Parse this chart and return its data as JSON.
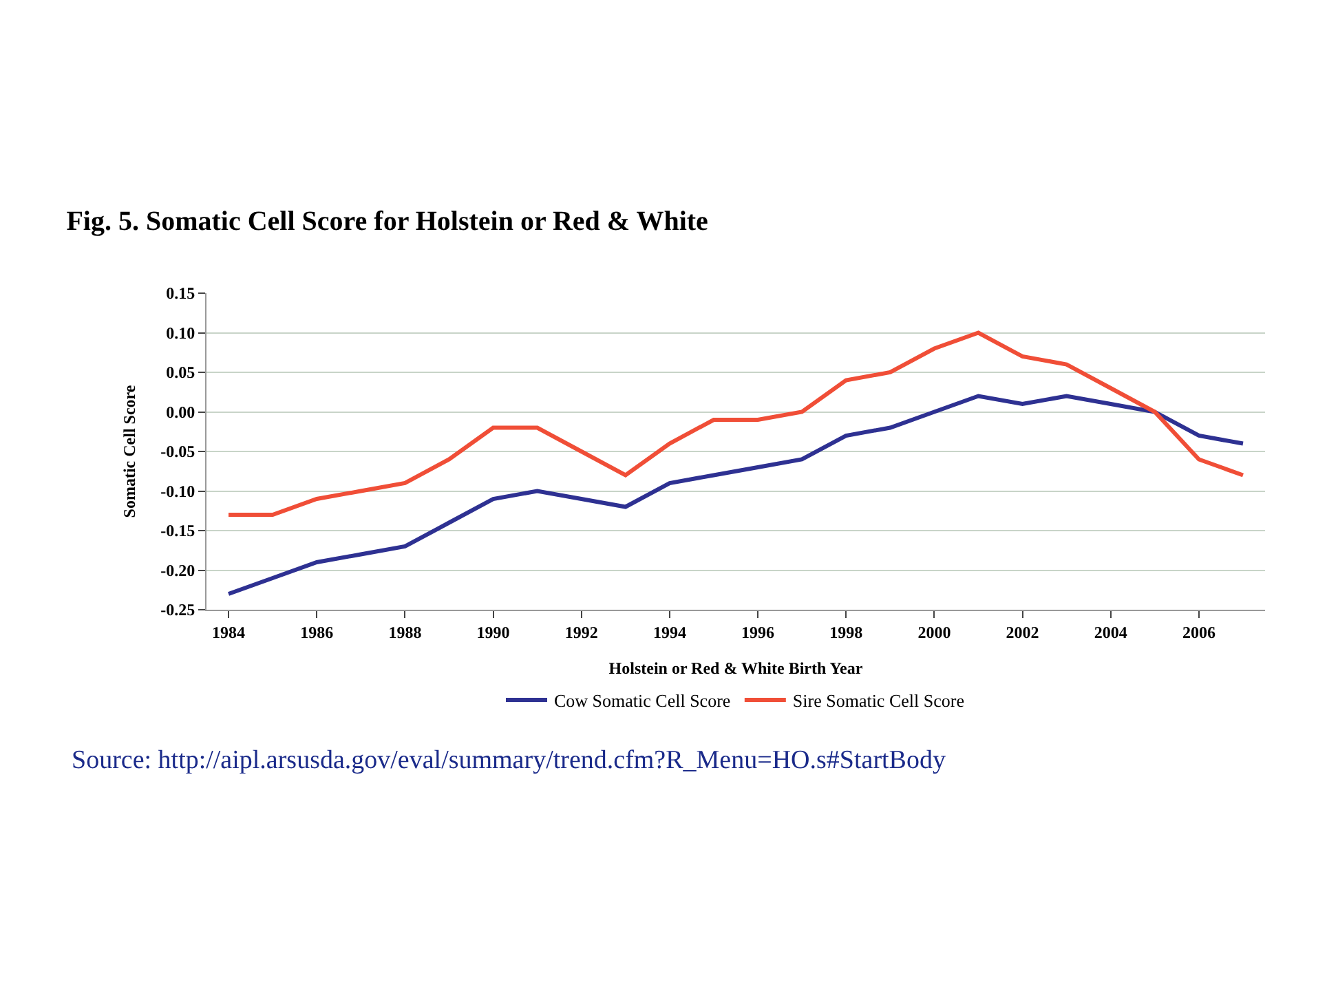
{
  "chart_data": {
    "type": "line",
    "title": "Fig. 5. Somatic Cell Score for Holstein or Red & White",
    "xlabel": "Holstein or Red & White Birth Year",
    "ylabel": "Somatic Cell Score",
    "x": [
      1984,
      1985,
      1986,
      1987,
      1988,
      1989,
      1990,
      1991,
      1992,
      1993,
      1994,
      1995,
      1996,
      1997,
      1998,
      1999,
      2000,
      2001,
      2002,
      2003,
      2004,
      2005,
      2006,
      2007
    ],
    "series": [
      {
        "name": "Cow Somatic Cell Score",
        "color": "#2e3192",
        "values": [
          -0.23,
          -0.21,
          -0.19,
          -0.18,
          -0.17,
          -0.14,
          -0.11,
          -0.1,
          -0.11,
          -0.12,
          -0.09,
          -0.08,
          -0.07,
          -0.06,
          -0.03,
          -0.02,
          0.0,
          0.02,
          0.01,
          0.02,
          0.01,
          0.0,
          -0.03,
          -0.04
        ]
      },
      {
        "name": "Sire Somatic Cell Score",
        "color": "#f04e37",
        "values": [
          -0.13,
          -0.13,
          -0.11,
          -0.1,
          -0.09,
          -0.06,
          -0.02,
          -0.02,
          -0.05,
          -0.08,
          -0.04,
          -0.01,
          -0.01,
          0.0,
          0.04,
          0.05,
          0.08,
          0.1,
          0.07,
          0.06,
          0.03,
          0.0,
          -0.06,
          -0.08
        ]
      }
    ],
    "xlim": [
      1983.5,
      2007.5
    ],
    "xticks": [
      1984,
      1986,
      1988,
      1990,
      1992,
      1994,
      1996,
      1998,
      2000,
      2002,
      2004,
      2006
    ],
    "ylim": [
      -0.25,
      0.15
    ],
    "yticks": [
      {
        "value": -0.25,
        "label": "-0.25"
      },
      {
        "value": -0.2,
        "label": "-0.20"
      },
      {
        "value": -0.15,
        "label": "-0.15"
      },
      {
        "value": -0.1,
        "label": "-0.10"
      },
      {
        "value": -0.05,
        "label": "-0.05"
      },
      {
        "value": 0,
        "label": "0.00"
      },
      {
        "value": 0.05,
        "label": "0.05"
      },
      {
        "value": 0.1,
        "label": "0.10"
      },
      {
        "value": 0.15,
        "label": "0.15"
      }
    ],
    "grid": "y",
    "legend": "bottom",
    "marker": "none",
    "line_style": "solid",
    "annotations": [
      "Source: http://aipl.arsusda.gov/eval/summary/trend.cfm?R_Menu=HO.s#StartBody"
    ]
  }
}
